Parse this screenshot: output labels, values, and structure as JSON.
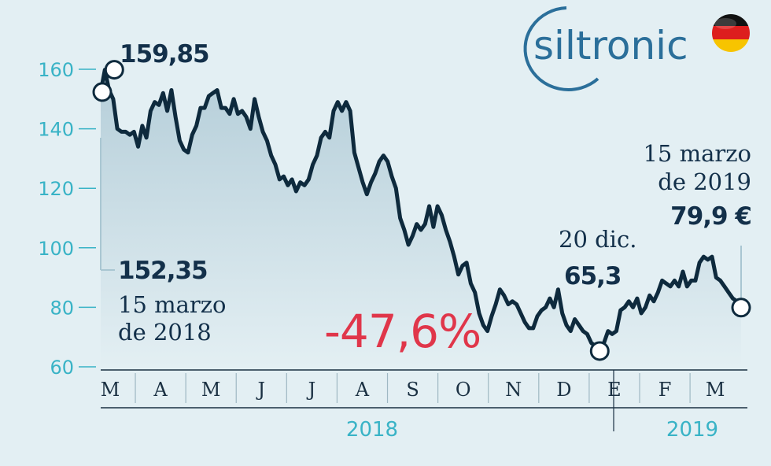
{
  "brand": {
    "logo_text": "siltronic",
    "logo_color": "#2b6f9a",
    "flag_icon": "germany-flag-icon",
    "flag_colors": [
      "#111111",
      "#dd1e1e",
      "#f7c400"
    ]
  },
  "colors": {
    "line": "#0e2a3d",
    "area_top": "#b5ced9",
    "area_bottom": "#e3eff3",
    "tick": "#39b3c6",
    "highlight": "#e0364a"
  },
  "annotations": {
    "max_value": "159,85",
    "start_value": "152,35",
    "start_date_line1": "15 marzo",
    "start_date_line2": "de 2018",
    "min_date": "20 dic.",
    "min_value": "65,3",
    "end_date_line1": "15 marzo",
    "end_date_line2": "de 2019",
    "end_value": "79,9 €",
    "change": "-47,6%"
  },
  "chart_data": {
    "type": "line",
    "title": "",
    "xlabel": "",
    "ylabel": "",
    "ylim": [
      60,
      162
    ],
    "yticks": [
      60,
      80,
      100,
      120,
      140,
      160
    ],
    "grid": false,
    "month_labels": [
      "M",
      "A",
      "M",
      "J",
      "J",
      "A",
      "S",
      "O",
      "N",
      "D",
      "E",
      "F",
      "M"
    ],
    "year_labels": [
      "2018",
      "2019"
    ],
    "series": [
      {
        "values": [
          152.35,
          159.85,
          153,
          150,
          140,
          139,
          139,
          138,
          139,
          134,
          141,
          137,
          146,
          149,
          148,
          152,
          146,
          153,
          144,
          136,
          133,
          132,
          138,
          141,
          147,
          147,
          151,
          152,
          153,
          147,
          147,
          145,
          150,
          145,
          146,
          144,
          140,
          150,
          144,
          139,
          136,
          131,
          128,
          123,
          124,
          121,
          123,
          119,
          122,
          121,
          123,
          128,
          131,
          137,
          139,
          137,
          146,
          149,
          146,
          149,
          146,
          132,
          127,
          122,
          118,
          122,
          125,
          129,
          131,
          129,
          124,
          120,
          110,
          106,
          101,
          104,
          108,
          106,
          108,
          114,
          107,
          114,
          111,
          106,
          102,
          97,
          91,
          94,
          95,
          88,
          85,
          78,
          74,
          72,
          77,
          81,
          86,
          84,
          81,
          82,
          81,
          78,
          75,
          73,
          73,
          77,
          79,
          80,
          83,
          80,
          86,
          78,
          74,
          72,
          76,
          74,
          72,
          71,
          68,
          67,
          65.3,
          68,
          72,
          71,
          72,
          79,
          80,
          82,
          80,
          83,
          78,
          80,
          84,
          82,
          85,
          89,
          88,
          87,
          89,
          87,
          92,
          87,
          89,
          89,
          95,
          97,
          96,
          97,
          90,
          89,
          87,
          85,
          83,
          82,
          79.9
        ]
      }
    ]
  }
}
